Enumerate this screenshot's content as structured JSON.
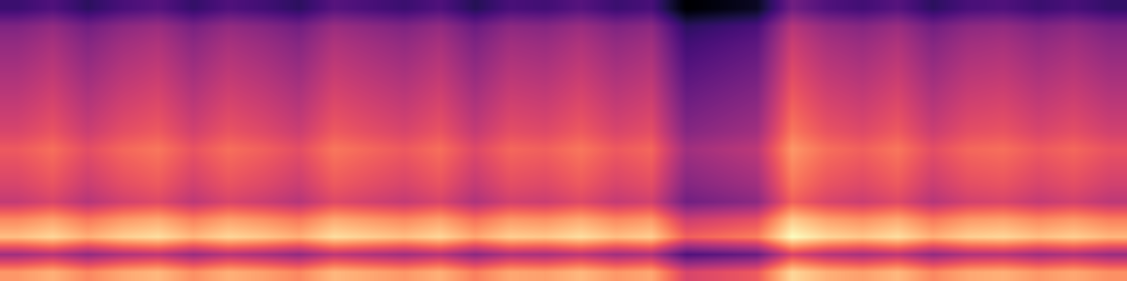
{
  "chart_data": {
    "type": "heatmap",
    "color": "magma",
    "tick_labels": false,
    "cells": [
      [
        0.25,
        0.28,
        0.23,
        0.27,
        0.29,
        0.24,
        0.28,
        0.26,
        0.23,
        0.29,
        0.27,
        0.25,
        0.28,
        0.22,
        0.27,
        0.26,
        0.29,
        0.25,
        0.27,
        0.13,
        0.15,
        0.17,
        0.33,
        0.28,
        0.26,
        0.29,
        0.23,
        0.27,
        0.28,
        0.25,
        0.27,
        0.24
      ],
      [
        0.35,
        0.38,
        0.33,
        0.37,
        0.39,
        0.34,
        0.38,
        0.36,
        0.33,
        0.39,
        0.37,
        0.35,
        0.38,
        0.32,
        0.37,
        0.36,
        0.39,
        0.35,
        0.37,
        0.23,
        0.25,
        0.27,
        0.43,
        0.38,
        0.36,
        0.39,
        0.33,
        0.37,
        0.38,
        0.35,
        0.37,
        0.34
      ],
      [
        0.38,
        0.41,
        0.36,
        0.4,
        0.42,
        0.37,
        0.41,
        0.39,
        0.36,
        0.42,
        0.4,
        0.38,
        0.41,
        0.35,
        0.4,
        0.39,
        0.42,
        0.38,
        0.4,
        0.26,
        0.28,
        0.3,
        0.46,
        0.41,
        0.39,
        0.42,
        0.36,
        0.4,
        0.41,
        0.38,
        0.4,
        0.37
      ],
      [
        0.4,
        0.43,
        0.38,
        0.42,
        0.44,
        0.39,
        0.43,
        0.41,
        0.38,
        0.44,
        0.42,
        0.4,
        0.43,
        0.37,
        0.42,
        0.41,
        0.44,
        0.4,
        0.42,
        0.28,
        0.3,
        0.32,
        0.48,
        0.43,
        0.41,
        0.44,
        0.38,
        0.42,
        0.43,
        0.4,
        0.42,
        0.39
      ],
      [
        0.42,
        0.45,
        0.4,
        0.44,
        0.46,
        0.41,
        0.45,
        0.43,
        0.4,
        0.46,
        0.44,
        0.42,
        0.45,
        0.39,
        0.44,
        0.43,
        0.46,
        0.42,
        0.44,
        0.3,
        0.32,
        0.34,
        0.5,
        0.45,
        0.43,
        0.46,
        0.4,
        0.44,
        0.45,
        0.42,
        0.44,
        0.41
      ],
      [
        0.44,
        0.47,
        0.42,
        0.46,
        0.48,
        0.43,
        0.47,
        0.45,
        0.42,
        0.48,
        0.46,
        0.44,
        0.47,
        0.41,
        0.46,
        0.45,
        0.48,
        0.44,
        0.46,
        0.32,
        0.34,
        0.36,
        0.52,
        0.47,
        0.45,
        0.48,
        0.42,
        0.46,
        0.47,
        0.44,
        0.46,
        0.43
      ],
      [
        0.46,
        0.49,
        0.44,
        0.48,
        0.5,
        0.45,
        0.49,
        0.47,
        0.44,
        0.5,
        0.48,
        0.46,
        0.49,
        0.43,
        0.48,
        0.47,
        0.5,
        0.46,
        0.48,
        0.34,
        0.36,
        0.38,
        0.54,
        0.49,
        0.47,
        0.5,
        0.44,
        0.48,
        0.49,
        0.46,
        0.48,
        0.45
      ],
      [
        0.48,
        0.51,
        0.46,
        0.5,
        0.52,
        0.47,
        0.51,
        0.49,
        0.46,
        0.52,
        0.5,
        0.48,
        0.51,
        0.45,
        0.5,
        0.49,
        0.52,
        0.48,
        0.5,
        0.36,
        0.38,
        0.4,
        0.56,
        0.51,
        0.49,
        0.52,
        0.46,
        0.5,
        0.51,
        0.48,
        0.5,
        0.47
      ],
      [
        0.52,
        0.55,
        0.5,
        0.54,
        0.56,
        0.51,
        0.55,
        0.53,
        0.5,
        0.56,
        0.54,
        0.52,
        0.55,
        0.49,
        0.54,
        0.53,
        0.56,
        0.52,
        0.54,
        0.4,
        0.42,
        0.44,
        0.6,
        0.55,
        0.53,
        0.56,
        0.5,
        0.54,
        0.55,
        0.52,
        0.54,
        0.51
      ],
      [
        0.5,
        0.53,
        0.48,
        0.52,
        0.54,
        0.49,
        0.53,
        0.51,
        0.48,
        0.54,
        0.52,
        0.5,
        0.53,
        0.47,
        0.52,
        0.51,
        0.54,
        0.5,
        0.52,
        0.38,
        0.4,
        0.42,
        0.58,
        0.53,
        0.51,
        0.54,
        0.48,
        0.52,
        0.53,
        0.5,
        0.52,
        0.49
      ],
      [
        0.48,
        0.51,
        0.46,
        0.5,
        0.52,
        0.47,
        0.51,
        0.49,
        0.46,
        0.52,
        0.5,
        0.48,
        0.51,
        0.45,
        0.5,
        0.49,
        0.52,
        0.48,
        0.5,
        0.36,
        0.38,
        0.4,
        0.56,
        0.51,
        0.49,
        0.52,
        0.46,
        0.5,
        0.51,
        0.48,
        0.5,
        0.47
      ],
      [
        0.45,
        0.48,
        0.43,
        0.47,
        0.49,
        0.44,
        0.48,
        0.46,
        0.43,
        0.49,
        0.47,
        0.45,
        0.48,
        0.42,
        0.47,
        0.46,
        0.49,
        0.45,
        0.47,
        0.33,
        0.35,
        0.37,
        0.53,
        0.48,
        0.46,
        0.49,
        0.43,
        0.47,
        0.48,
        0.45,
        0.47,
        0.44
      ],
      [
        0.58,
        0.61,
        0.56,
        0.6,
        0.62,
        0.57,
        0.61,
        0.59,
        0.56,
        0.62,
        0.6,
        0.58,
        0.61,
        0.55,
        0.6,
        0.59,
        0.62,
        0.58,
        0.6,
        0.46,
        0.48,
        0.5,
        0.66,
        0.61,
        0.59,
        0.62,
        0.56,
        0.6,
        0.61,
        0.58,
        0.6,
        0.57
      ],
      [
        0.65,
        0.68,
        0.63,
        0.67,
        0.69,
        0.64,
        0.68,
        0.66,
        0.63,
        0.69,
        0.67,
        0.65,
        0.68,
        0.62,
        0.67,
        0.66,
        0.69,
        0.65,
        0.67,
        0.53,
        0.55,
        0.57,
        0.73,
        0.68,
        0.66,
        0.69,
        0.63,
        0.67,
        0.68,
        0.65,
        0.67,
        0.64
      ],
      [
        0.4,
        0.43,
        0.38,
        0.42,
        0.44,
        0.39,
        0.43,
        0.41,
        0.38,
        0.44,
        0.42,
        0.4,
        0.43,
        0.37,
        0.42,
        0.41,
        0.44,
        0.4,
        0.42,
        0.28,
        0.3,
        0.32,
        0.48,
        0.43,
        0.41,
        0.44,
        0.38,
        0.42,
        0.43,
        0.4,
        0.42,
        0.39
      ],
      [
        0.6,
        0.63,
        0.58,
        0.62,
        0.64,
        0.59,
        0.63,
        0.61,
        0.58,
        0.64,
        0.62,
        0.6,
        0.63,
        0.57,
        0.62,
        0.61,
        0.64,
        0.6,
        0.62,
        0.48,
        0.5,
        0.52,
        0.68,
        0.63,
        0.61,
        0.64,
        0.58,
        0.62,
        0.63,
        0.6,
        0.62,
        0.59
      ]
    ]
  }
}
